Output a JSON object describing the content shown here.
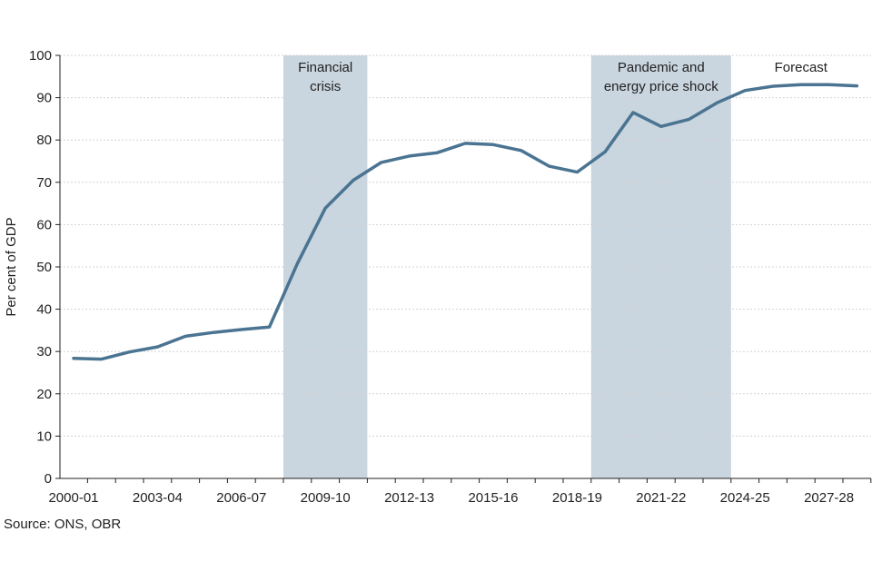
{
  "chart_data": {
    "type": "line",
    "title": "",
    "xlabel": "",
    "ylabel": "Per cent of GDP",
    "ylim": [
      0,
      100
    ],
    "yticks": [
      0,
      10,
      20,
      30,
      40,
      50,
      60,
      70,
      80,
      90,
      100
    ],
    "grid": "horizontal",
    "x": [
      "2000-01",
      "2001-02",
      "2002-03",
      "2003-04",
      "2004-05",
      "2005-06",
      "2006-07",
      "2007-08",
      "2008-09",
      "2009-10",
      "2010-11",
      "2011-12",
      "2012-13",
      "2013-14",
      "2014-15",
      "2015-16",
      "2016-17",
      "2017-18",
      "2018-19",
      "2019-20",
      "2020-21",
      "2021-22",
      "2022-23",
      "2023-24",
      "2024-25",
      "2025-26",
      "2026-27",
      "2027-28",
      "2028-29"
    ],
    "xtick_labels": [
      "2000-01",
      "2003-04",
      "2006-07",
      "2009-10",
      "2012-13",
      "2015-16",
      "2018-19",
      "2021-22",
      "2024-25",
      "2027-28"
    ],
    "series": [
      {
        "values": [
          28.4,
          28.2,
          29.9,
          31.1,
          33.6,
          34.5,
          35.2,
          35.8,
          50.8,
          63.9,
          70.5,
          74.7,
          76.2,
          77.0,
          79.2,
          78.9,
          77.5,
          73.8,
          72.4,
          77.2,
          86.5,
          83.2,
          84.9,
          88.8,
          91.7,
          92.7,
          93.1,
          93.1,
          92.8
        ],
        "color": "#4a7491"
      }
    ],
    "shaded_regions": [
      {
        "label_lines": [
          "Financial",
          "crisis"
        ],
        "from": 7.5,
        "to": 10.5,
        "color": "#c9d5df"
      },
      {
        "label_lines": [
          "Pandemic and",
          "energy price shock"
        ],
        "from": 18.5,
        "to": 23.5,
        "color": "#c9d5df"
      }
    ],
    "annotations": [
      {
        "text": "Forecast",
        "x": 26.0
      }
    ]
  },
  "source": "Source: ONS, OBR"
}
